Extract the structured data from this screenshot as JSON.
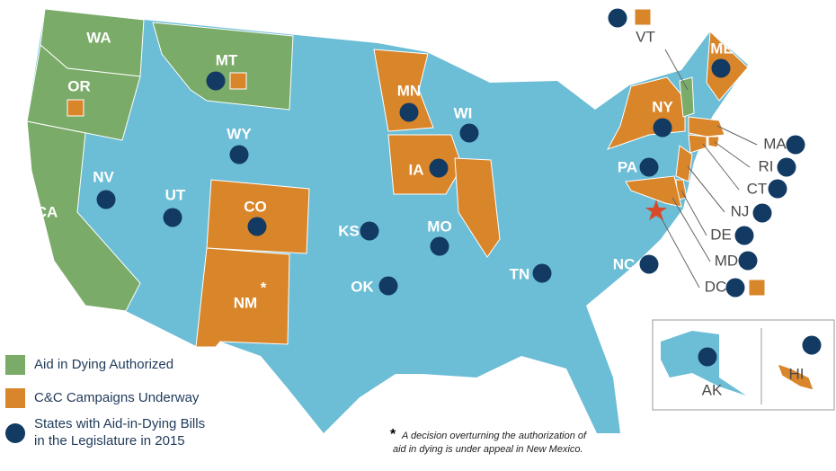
{
  "map": {
    "base_color": "#6cbdd6",
    "dot_color": "#123a63",
    "square_color": "#d9852a",
    "states": [
      {
        "label": "WA",
        "color": "#7aab68",
        "dot": false,
        "square": false
      },
      {
        "label": "OR",
        "color": "#7aab68",
        "dot": false,
        "square": true
      },
      {
        "label": "CA",
        "color": "#7aab68",
        "dot": false,
        "square": false
      },
      {
        "label": "MT",
        "color": "#7aab68",
        "dot": true,
        "square": true
      },
      {
        "label": "NV",
        "color": null,
        "dot": true,
        "square": false
      },
      {
        "label": "UT",
        "color": null,
        "dot": true,
        "square": false
      },
      {
        "label": "WY",
        "color": null,
        "dot": true,
        "square": false
      },
      {
        "label": "CO",
        "color": "#d9852a",
        "dot": true,
        "square": false
      },
      {
        "label": "NM",
        "color": "#d9852a",
        "dot": false,
        "square": false,
        "mark": "*"
      },
      {
        "label": "KS",
        "color": null,
        "dot": true,
        "square": false
      },
      {
        "label": "OK",
        "color": null,
        "dot": true,
        "square": false
      },
      {
        "label": "MN",
        "color": "#d9852a",
        "dot": true,
        "square": false
      },
      {
        "label": "IA",
        "color": "#d9852a",
        "dot": true,
        "square": false
      },
      {
        "label": "WI",
        "color": null,
        "dot": true,
        "square": false
      },
      {
        "label": "MO",
        "color": null,
        "dot": true,
        "square": false
      },
      {
        "label": "TN",
        "color": null,
        "dot": true,
        "square": false
      },
      {
        "label": "NC",
        "color": null,
        "dot": true,
        "square": false
      },
      {
        "label": "PA",
        "color": null,
        "dot": true,
        "square": false
      },
      {
        "label": "NY",
        "color": "#d9852a",
        "dot": true,
        "square": false
      },
      {
        "label": "ME",
        "color": "#d9852a",
        "dot": true,
        "square": false
      },
      {
        "label": "VT",
        "color": "#7aab68",
        "dot": true,
        "square": true
      },
      {
        "label": "MA",
        "color": "#d9852a",
        "dot": true,
        "square": false
      },
      {
        "label": "RI",
        "color": "#d9852a",
        "dot": true,
        "square": false
      },
      {
        "label": "CT",
        "color": "#d9852a",
        "dot": true,
        "square": false
      },
      {
        "label": "NJ",
        "color": "#d9852a",
        "dot": true,
        "square": false
      },
      {
        "label": "DE",
        "color": "#d9852a",
        "dot": true,
        "square": false
      },
      {
        "label": "MD",
        "color": "#d9852a",
        "dot": true,
        "square": false
      },
      {
        "label": "DC",
        "color": "#d64a2a",
        "dot": true,
        "square": true
      },
      {
        "label": "AK",
        "color": null,
        "dot": true,
        "square": false
      },
      {
        "label": "HI",
        "color": "#d9852a",
        "dot": true,
        "square": false
      },
      {
        "label": null,
        "color": "#d9852a",
        "dot": false,
        "square": false
      }
    ]
  },
  "legend": [
    {
      "color": "#7aab68",
      "lines": [
        "Aid in Dying Authorized"
      ]
    },
    {
      "color": "#d9852a",
      "lines": [
        "C&C Campaigns Underway"
      ]
    },
    {
      "color": "#123a63",
      "lines": [
        "States with Aid-in-Dying Bills",
        "in the Legislature in 2015"
      ]
    }
  ],
  "footnote": {
    "mark": "*",
    "lines": [
      "A decision overturning the authorization of",
      "aid in dying is under appeal in New Mexico."
    ]
  }
}
